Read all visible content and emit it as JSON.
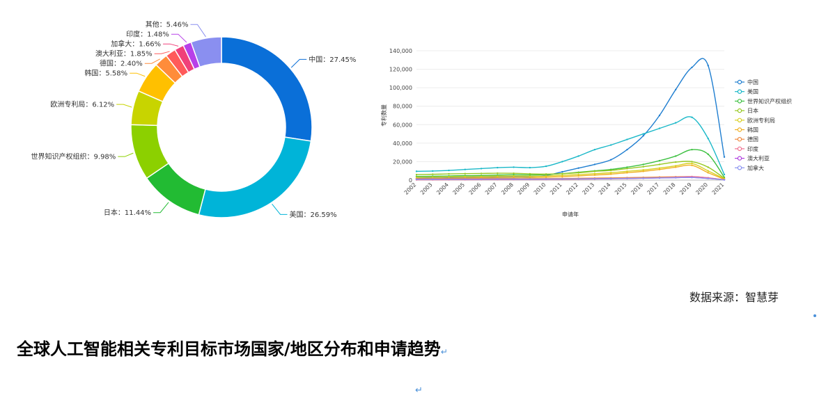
{
  "source_text": "数据来源：智慧芽",
  "heading": "全球人工智能相关专利目标市场国家/地区分布和申请趋势",
  "para_mark": "↵",
  "chart_data": [
    {
      "type": "pie",
      "title": "",
      "slices": [
        {
          "label": "中国：27.45%",
          "value": 27.45,
          "color": "#0a6fd8"
        },
        {
          "label": "美国：26.59%",
          "value": 26.59,
          "color": "#00b4d8"
        },
        {
          "label": "日本：11.44%",
          "value": 11.44,
          "color": "#22bb33"
        },
        {
          "label": "世界知识产权组织：9.98%",
          "value": 9.98,
          "color": "#8cd000"
        },
        {
          "label": "欧洲专利局：6.12%",
          "value": 6.12,
          "color": "#c8d400"
        },
        {
          "label": "韩国：5.58%",
          "value": 5.58,
          "color": "#ffc000"
        },
        {
          "label": "德国：2.40%",
          "value": 2.4,
          "color": "#ff8c3a"
        },
        {
          "label": "澳大利亚：1.85%",
          "value": 1.85,
          "color": "#ff5a5a"
        },
        {
          "label": "加拿大：1.66%",
          "value": 1.66,
          "color": "#f0407a"
        },
        {
          "label": "印度：1.48%",
          "value": 1.48,
          "color": "#b840e8"
        },
        {
          "label": "其他：5.46%",
          "value": 5.46,
          "color": "#8a8ff0"
        }
      ]
    },
    {
      "type": "line",
      "title": "",
      "xlabel": "申请年",
      "ylabel": "专利数量",
      "x": [
        "2002",
        "2003",
        "2004",
        "2005",
        "2006",
        "2007",
        "2008",
        "2009",
        "2010",
        "2011",
        "2012",
        "2013",
        "2014",
        "2015",
        "2016",
        "2017",
        "2018",
        "2019",
        "2020",
        "2021"
      ],
      "ylim": [
        0,
        140000
      ],
      "yticks": [
        "0",
        "20,000",
        "40,000",
        "60,000",
        "80,000",
        "100,000",
        "120,000",
        "140,000"
      ],
      "legend_position": "right",
      "grid": true,
      "series": [
        {
          "name": "中国",
          "color": "#1f7ed0",
          "values": [
            2000,
            2200,
            2500,
            2800,
            3000,
            3300,
            3600,
            4000,
            5000,
            9000,
            13000,
            17000,
            22000,
            33000,
            48000,
            70000,
            98000,
            122000,
            124000,
            25000
          ]
        },
        {
          "name": "美国",
          "color": "#1ab8c8",
          "values": [
            9500,
            9800,
            10500,
            11500,
            12500,
            13500,
            14000,
            13500,
            15000,
            20000,
            26000,
            33000,
            38000,
            44000,
            50000,
            56000,
            62000,
            68000,
            45000,
            6000
          ]
        },
        {
          "name": "世界知识产权组织",
          "color": "#3cc040",
          "values": [
            4000,
            4200,
            4500,
            4800,
            5000,
            5500,
            5800,
            5600,
            6000,
            7000,
            8500,
            10000,
            11500,
            14000,
            17000,
            21000,
            26000,
            33000,
            28000,
            3000
          ]
        },
        {
          "name": "日本",
          "color": "#96c820",
          "values": [
            6000,
            6300,
            6700,
            7000,
            7200,
            7500,
            7400,
            6800,
            6500,
            7000,
            8000,
            9500,
            10500,
            12500,
            14500,
            17000,
            19500,
            20000,
            14000,
            2000
          ]
        },
        {
          "name": "欧洲专利局",
          "color": "#d8d020",
          "values": [
            3000,
            3200,
            3500,
            3800,
            4000,
            4300,
            4500,
            4300,
            4500,
            5200,
            6000,
            7000,
            8000,
            9500,
            11000,
            13000,
            15500,
            18000,
            10000,
            1500
          ]
        },
        {
          "name": "韩国",
          "color": "#f0b020",
          "values": [
            1500,
            1700,
            2000,
            2300,
            2600,
            2900,
            3000,
            2900,
            3200,
            3800,
            4600,
            5500,
            6500,
            8000,
            9500,
            11500,
            14000,
            16000,
            8000,
            1000
          ]
        },
        {
          "name": "德国",
          "color": "#f08a40",
          "values": [
            1500,
            1550,
            1600,
            1650,
            1700,
            1750,
            1700,
            1600,
            1650,
            1800,
            2000,
            2200,
            2400,
            2700,
            3000,
            3300,
            3600,
            3700,
            2500,
            400
          ]
        },
        {
          "name": "印度",
          "color": "#f07090",
          "values": [
            300,
            350,
            400,
            450,
            500,
            550,
            600,
            650,
            700,
            800,
            1000,
            1200,
            1400,
            1700,
            2000,
            2500,
            3100,
            3800,
            2500,
            400
          ]
        },
        {
          "name": "澳大利亚",
          "color": "#b040e0",
          "values": [
            800,
            850,
            900,
            950,
            1000,
            1050,
            1050,
            1000,
            1050,
            1150,
            1300,
            1450,
            1600,
            1800,
            2000,
            2300,
            2600,
            2900,
            1800,
            300
          ]
        },
        {
          "name": "加拿大",
          "color": "#8890f0",
          "values": [
            900,
            950,
            1000,
            1050,
            1100,
            1150,
            1150,
            1100,
            1150,
            1250,
            1400,
            1550,
            1700,
            1900,
            2100,
            2400,
            2700,
            2900,
            1800,
            300
          ]
        }
      ]
    }
  ]
}
